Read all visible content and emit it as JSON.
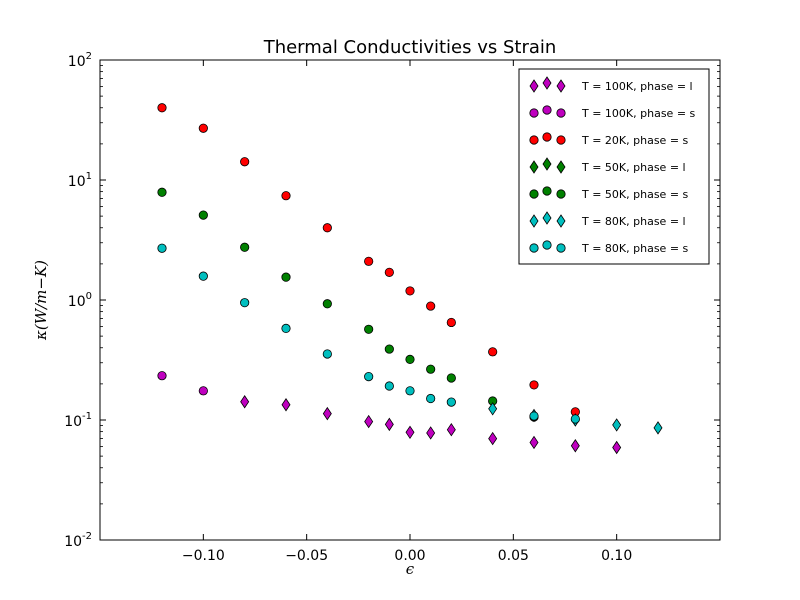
{
  "chart_data": {
    "type": "scatter",
    "title": "Thermal Conductivities vs Strain",
    "xlabel": "ϵ",
    "ylabel": "κ(W/m−K)",
    "x_scale": "linear",
    "y_scale": "log",
    "xlim": [
      -0.15,
      0.15
    ],
    "ylim": [
      0.01,
      100
    ],
    "x_ticks": [
      -0.1,
      -0.05,
      0.0,
      0.05,
      0.1
    ],
    "x_tick_labels": [
      "−0.10",
      "−0.05",
      "0.00",
      "0.05",
      "0.10"
    ],
    "y_ticks": [
      0.01,
      0.1,
      1,
      10,
      100
    ],
    "y_tick_labels": [
      {
        "base": "10",
        "exp": "-2"
      },
      {
        "base": "10",
        "exp": "-1"
      },
      {
        "base": "10",
        "exp": "0"
      },
      {
        "base": "10",
        "exp": "1"
      },
      {
        "base": "10",
        "exp": "2"
      }
    ],
    "grid": false,
    "legend_position": "top-right",
    "series": [
      {
        "name": "T = 100K, phase = l",
        "color": "#bf00bf",
        "marker": "diamond",
        "x": [
          -0.08,
          -0.06,
          -0.04,
          -0.02,
          -0.01,
          0.0,
          0.01,
          0.02,
          0.04,
          0.06,
          0.08,
          0.1
        ],
        "y": [
          0.142,
          0.134,
          0.113,
          0.097,
          0.092,
          0.079,
          0.078,
          0.083,
          0.07,
          0.065,
          0.061,
          0.059
        ]
      },
      {
        "name": "T = 100K, phase = s",
        "color": "#bf00bf",
        "marker": "circle",
        "x": [
          -0.12,
          -0.1
        ],
        "y": [
          0.234,
          0.175
        ]
      },
      {
        "name": "T = 20K, phase = s",
        "color": "#ff0000",
        "marker": "circle",
        "x": [
          -0.12,
          -0.1,
          -0.08,
          -0.06,
          -0.04,
          -0.02,
          -0.01,
          0.0,
          0.01,
          0.02,
          0.04,
          0.06,
          0.08
        ],
        "y": [
          40,
          27,
          14.2,
          7.4,
          4.0,
          2.1,
          1.7,
          1.19,
          0.89,
          0.65,
          0.37,
          0.196,
          0.117
        ]
      },
      {
        "name": "T = 50K, phase = l",
        "color": "#008000",
        "marker": "diamond",
        "x": [],
        "y": []
      },
      {
        "name": "T = 50K, phase = s",
        "color": "#008000",
        "marker": "circle",
        "x": [
          -0.12,
          -0.1,
          -0.08,
          -0.06,
          -0.04,
          -0.02,
          -0.01,
          0.0,
          0.01,
          0.02,
          0.04,
          0.06
        ],
        "y": [
          7.9,
          5.1,
          2.75,
          1.55,
          0.93,
          0.57,
          0.39,
          0.32,
          0.265,
          0.224,
          0.144,
          0.106
        ]
      },
      {
        "name": "T = 80K, phase = l",
        "color": "#00bfbf",
        "marker": "diamond",
        "x": [
          0.04,
          0.06,
          0.08,
          0.1,
          0.12
        ],
        "y": [
          0.124,
          0.109,
          0.1,
          0.091,
          0.086
        ]
      },
      {
        "name": "T = 80K, phase = s",
        "color": "#00bfbf",
        "marker": "circle",
        "x": [
          -0.12,
          -0.1,
          -0.08,
          -0.06,
          -0.04,
          -0.02,
          -0.01,
          0.0,
          0.01,
          0.02,
          0.06,
          0.08
        ],
        "y": [
          2.7,
          1.58,
          0.95,
          0.58,
          0.355,
          0.23,
          0.192,
          0.175,
          0.151,
          0.141,
          0.108,
          0.102
        ]
      }
    ]
  }
}
